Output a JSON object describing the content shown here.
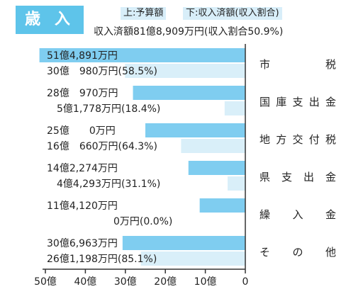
{
  "header": {
    "badge": "歳 入",
    "legend_upper": "上:予算額",
    "legend_lower": "下:収入済額(収入割合)",
    "summary": "収入済額81億8,909万円(収入割合50.9%)"
  },
  "colors": {
    "budget": "#7fcdf0",
    "received": "#d9eff9",
    "badge": "#5ec4ea",
    "axis": "#333333"
  },
  "chart_data": {
    "type": "bar",
    "orientation": "horizontal",
    "reversed_x": true,
    "unit": "億円",
    "xlim": [
      0,
      50
    ],
    "xticks": [
      50,
      40,
      30,
      20,
      10,
      0
    ],
    "xtick_labels": [
      "50億",
      "40億",
      "30億",
      "20億",
      "10億",
      "0"
    ],
    "categories": [
      "市　　税",
      "国庫支出金",
      "地方交付税",
      "県支出金",
      "繰　入　金",
      "そ　の　他"
    ],
    "series": [
      {
        "name": "予算額",
        "values": [
          51.4891,
          28.097,
          25.0,
          14.2274,
          11.412,
          30.6963
        ],
        "labels": [
          "51億4,891万円",
          "28億　970万円",
          "25億　　0万円",
          "14億2,274万円",
          "11億4,120万円",
          "30億6,963万円"
        ]
      },
      {
        "name": "収入済額",
        "values": [
          30.098,
          5.1778,
          16.066,
          4.4293,
          0,
          26.1198
        ],
        "labels": [
          "30億　980万円(58.5%)",
          "5億1,778万円(18.4%)",
          "16億　660万円(64.3%)",
          "4億4,293万円(31.1%)",
          "0万円(0.0%)",
          "26億1,198万円(85.1%)"
        ]
      }
    ]
  }
}
